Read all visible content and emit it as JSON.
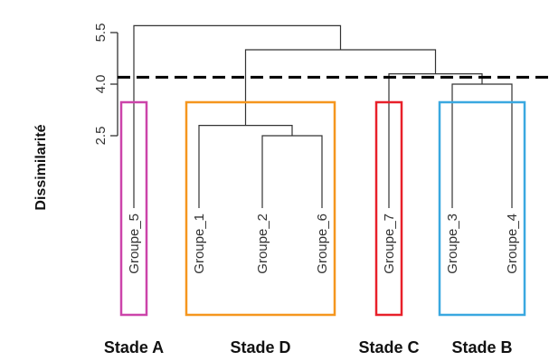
{
  "chart_data": {
    "type": "dendrogram",
    "ylabel": "Dissimilarité",
    "yticks": [
      2.5,
      4.0,
      5.5
    ],
    "yaxis_range": [
      2.5,
      5.5
    ],
    "leaves": [
      "Groupe_5",
      "Groupe_1",
      "Groupe_2",
      "Groupe_6",
      "Groupe_7",
      "Groupe_3",
      "Groupe_4"
    ],
    "merges": [
      {
        "a": "L2",
        "b": "L3",
        "height": 2.5
      },
      {
        "a": "L1",
        "b": "c0",
        "height": 2.8
      },
      {
        "a": "L5",
        "b": "L6",
        "height": 4.0
      },
      {
        "a": "L4",
        "b": "c2",
        "height": 4.3
      },
      {
        "a": "c1",
        "b": "c3",
        "height": 5.0
      },
      {
        "a": "L0",
        "b": "c4",
        "height": 5.7
      }
    ],
    "cut_height": 4.2,
    "clusters": [
      {
        "label": "Stade A",
        "leaves": [
          0,
          0
        ],
        "color": "#cc44aa"
      },
      {
        "label": "Stade D",
        "leaves": [
          1,
          3
        ],
        "color": "#f5961e"
      },
      {
        "label": "Stade C",
        "leaves": [
          4,
          4
        ],
        "color": "#e8202a"
      },
      {
        "label": "Stade B",
        "leaves": [
          5,
          6
        ],
        "color": "#3aa8e0"
      }
    ]
  }
}
